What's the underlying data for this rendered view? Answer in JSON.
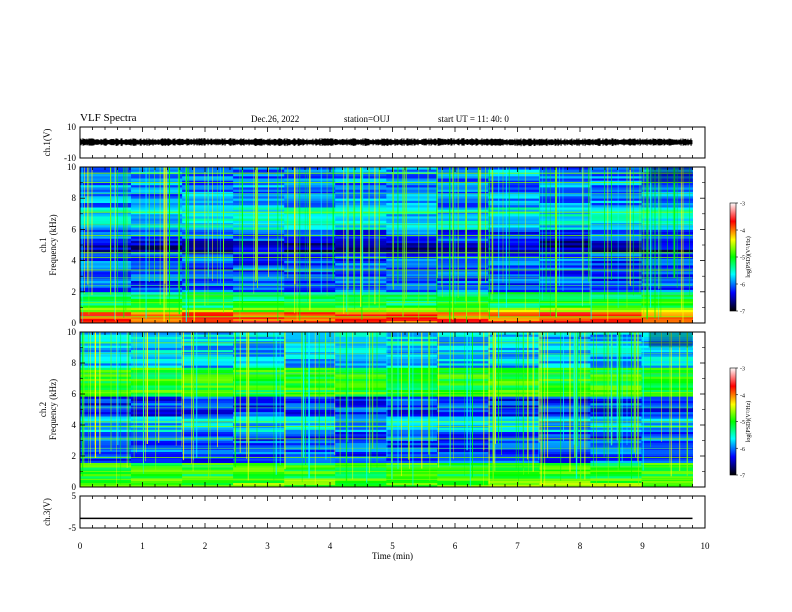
{
  "header": {
    "title": "VLF Spectra",
    "date": "Dec.26, 2022",
    "station": "station=OUJ",
    "start": "start  UT =   11: 40: 0"
  },
  "colorbar": {
    "label": "log(PSD)(V²/Hz)",
    "ticks": [
      "-3",
      "-4",
      "-5",
      "-6",
      "-7"
    ],
    "colors": [
      "#ffffff",
      "#ff0000",
      "#ffff00",
      "#00ff00",
      "#00ffff",
      "#0000ff",
      "#000000"
    ]
  },
  "chart_data": [
    {
      "type": "line",
      "name": "ch1-waveform",
      "ylabel": "ch.1(V)",
      "ylim": [
        -10,
        10
      ],
      "yticks": [
        "10",
        "-10"
      ],
      "x": [
        0,
        1,
        2,
        3,
        4,
        5,
        6,
        7,
        8,
        9,
        9.8
      ],
      "y": [
        0.3,
        0.2,
        0.4,
        0.2,
        0.3,
        0.2,
        0.4,
        0.1,
        0.2,
        0.3,
        0.2
      ]
    },
    {
      "type": "heatmap",
      "name": "ch1-spectrogram",
      "ylabel": "ch.1\nFrequency (kHz)",
      "ylim": [
        0,
        10
      ],
      "yticks": [
        "0",
        "2",
        "4",
        "6",
        "8",
        "10"
      ],
      "xlim": [
        0,
        10
      ],
      "data_end_min": 9.8,
      "zlim": [
        -7,
        -3
      ]
    },
    {
      "type": "heatmap",
      "name": "ch2-spectrogram",
      "ylabel": "ch.2\nFrequency (kHz)",
      "ylim": [
        0,
        10
      ],
      "yticks": [
        "0",
        "2",
        "4",
        "6",
        "8",
        "10"
      ],
      "xlim": [
        0,
        10
      ],
      "data_end_min": 9.8,
      "zlim": [
        -7,
        -3
      ]
    },
    {
      "type": "line",
      "name": "ch3-waveform",
      "ylabel": "ch.3(V)",
      "ylim": [
        -5,
        5
      ],
      "yticks": [
        "5",
        "-5"
      ],
      "x": [
        0,
        9.8
      ],
      "y": [
        -2,
        -2
      ]
    }
  ],
  "xaxis": {
    "label": "Time (min)",
    "ticks": [
      "0",
      "1",
      "2",
      "3",
      "4",
      "5",
      "6",
      "7",
      "8",
      "9",
      "10"
    ]
  }
}
